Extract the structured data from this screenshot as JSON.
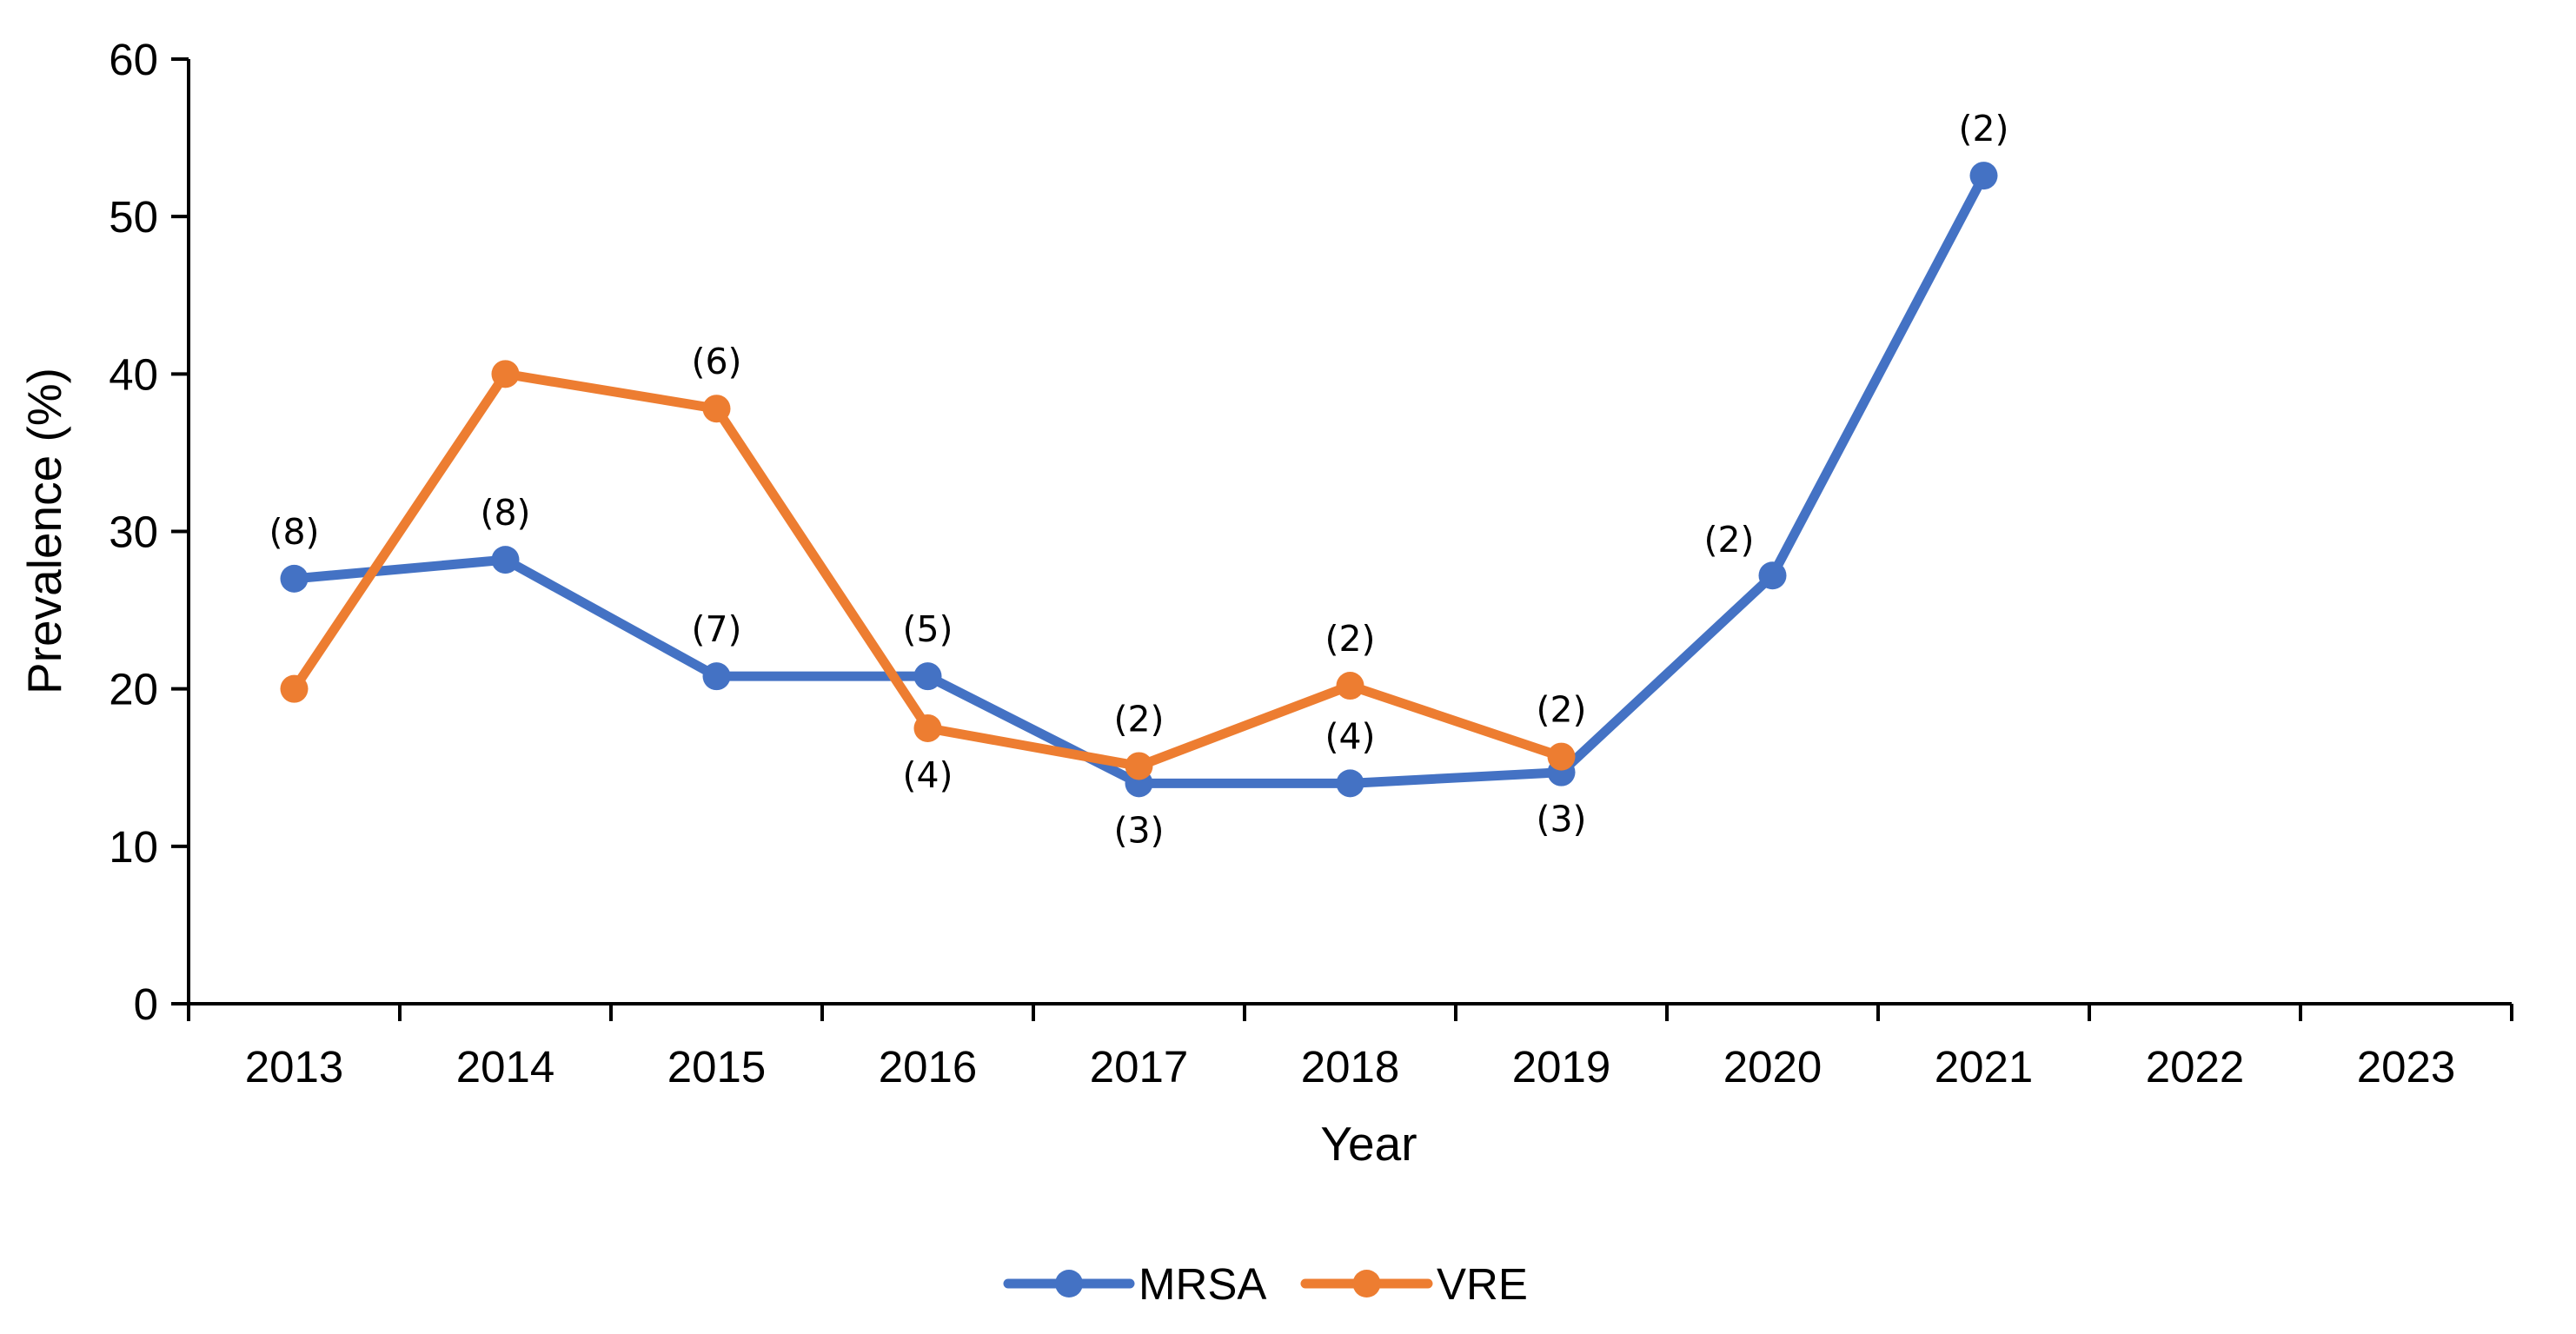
{
  "chart_data": {
    "type": "line",
    "title": "",
    "xlabel": "Year",
    "ylabel": "Prevalence (%)",
    "categories": [
      "2013",
      "2014",
      "2015",
      "2016",
      "2017",
      "2018",
      "2019",
      "2020",
      "2021",
      "2022",
      "2023"
    ],
    "ylim": [
      0,
      60
    ],
    "yticks": [
      "0",
      "10",
      "20",
      "30",
      "40",
      "50",
      "60"
    ],
    "grid": false,
    "legend": "bottom-center",
    "series": [
      {
        "name": "MRSA",
        "color": "#4472C4",
        "values": [
          27,
          28.2,
          20.8,
          20.8,
          14,
          14,
          14.7,
          27.2,
          52.6,
          null,
          null
        ],
        "labels": [
          "(8)",
          "(8)",
          "(7)",
          "(5)",
          "(3)",
          "(4)",
          "(3)",
          "(2)",
          "(2)",
          "",
          ""
        ],
        "label_positions": [
          "above",
          "above",
          "above",
          "above",
          "below",
          "above",
          "below",
          "above-left",
          "above",
          "",
          ""
        ]
      },
      {
        "name": "VRE",
        "color": "#ED7D31",
        "values": [
          20,
          40,
          37.8,
          17.5,
          15.1,
          20.2,
          15.7,
          null,
          null,
          null,
          null
        ],
        "labels": [
          "",
          "",
          "(6)",
          "(4)",
          "(2)",
          "(2)",
          "(2)",
          "",
          "",
          "",
          ""
        ],
        "label_positions": [
          "",
          "",
          "above",
          "below",
          "above",
          "above",
          "above",
          "",
          "",
          "",
          ""
        ]
      }
    ]
  }
}
